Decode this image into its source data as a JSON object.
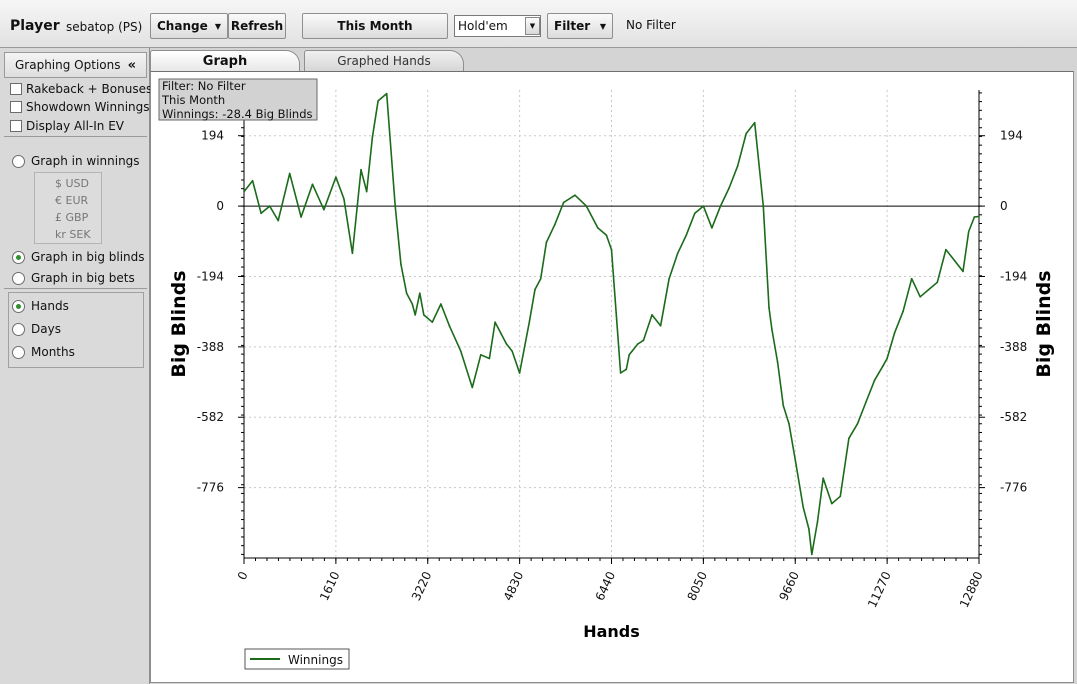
{
  "toolbar": {
    "player_label": "Player",
    "player_name": "sebatop (PS)",
    "change_label": "Change",
    "refresh_label": "Refresh",
    "period_label": "This Month",
    "game_select": "Hold'em",
    "filter_label": "Filter",
    "filter_status": "No Filter"
  },
  "sidebar": {
    "header": "Graphing Options",
    "collapse_glyph": "«",
    "checkboxes": [
      {
        "label": "Rakeback + Bonuses",
        "checked": false
      },
      {
        "label": "Showdown Winnings",
        "checked": false
      },
      {
        "label": "Display All-In EV",
        "checked": false
      }
    ],
    "graph_modes": [
      {
        "label": "Graph in winnings",
        "checked": false
      },
      {
        "label": "Graph in big blinds",
        "checked": true
      },
      {
        "label": "Graph in big bets",
        "checked": false
      }
    ],
    "currencies": [
      "$ USD",
      "€ EUR",
      "£ GBP",
      "kr SEK"
    ],
    "x_modes": [
      {
        "label": "Hands",
        "checked": true
      },
      {
        "label": "Days",
        "checked": false
      },
      {
        "label": "Months",
        "checked": false
      }
    ]
  },
  "tabs": [
    {
      "label": "Graph",
      "active": true
    },
    {
      "label": "Graphed Hands",
      "active": false
    }
  ],
  "chart_data": {
    "type": "line",
    "info_box": [
      "Filter: No Filter",
      "This Month",
      "Winnings: -28.4 Big Blinds"
    ],
    "xlabel": "Hands",
    "ylabel": "Big Blinds",
    "xlim": [
      0,
      12880
    ],
    "ylim": [
      -970,
      320
    ],
    "x_ticks": [
      0,
      1610,
      3220,
      4830,
      6440,
      8050,
      9660,
      11270,
      12880
    ],
    "y_ticks": [
      194,
      0,
      -194,
      -388,
      -582,
      -776
    ],
    "legend": "Winnings",
    "line_color": "#1b6b1b",
    "series": [
      {
        "name": "Winnings",
        "x": [
          0,
          150,
          300,
          450,
          600,
          800,
          1000,
          1200,
          1400,
          1610,
          1750,
          1900,
          2050,
          2150,
          2250,
          2350,
          2500,
          2650,
          2750,
          2850,
          2950,
          3000,
          3080,
          3150,
          3300,
          3450,
          3600,
          3800,
          4000,
          4150,
          4300,
          4400,
          4500,
          4600,
          4700,
          4830,
          5000,
          5100,
          5200,
          5300,
          5450,
          5600,
          5800,
          6000,
          6200,
          6350,
          6440,
          6600,
          6700,
          6750,
          6800,
          6900,
          7000,
          7150,
          7300,
          7450,
          7600,
          7750,
          7900,
          8050,
          8200,
          8350,
          8500,
          8650,
          8800,
          8950,
          9100,
          9200,
          9250,
          9350,
          9450,
          9550,
          9660,
          9800,
          9900,
          9950,
          10050,
          10150,
          10300,
          10450,
          10600,
          10750,
          10900,
          11050,
          11200,
          11270,
          11400,
          11550,
          11700,
          11850,
          12000,
          12150,
          12300,
          12450,
          12600,
          12700,
          12800,
          12880
        ],
        "y": [
          40,
          70,
          -20,
          0,
          -40,
          90,
          -30,
          60,
          -10,
          80,
          20,
          -130,
          100,
          40,
          190,
          290,
          310,
          0,
          -160,
          -240,
          -270,
          -300,
          -240,
          -300,
          -320,
          -270,
          -330,
          -400,
          -500,
          -410,
          -420,
          -320,
          -350,
          -380,
          -400,
          -460,
          -320,
          -230,
          -200,
          -100,
          -50,
          10,
          30,
          0,
          -60,
          -80,
          -120,
          -460,
          -450,
          -410,
          -400,
          -380,
          -370,
          -300,
          -330,
          -200,
          -130,
          -80,
          -20,
          0,
          -60,
          0,
          50,
          110,
          200,
          230,
          0,
          -280,
          -340,
          -430,
          -550,
          -600,
          -700,
          -830,
          -890,
          -960,
          -870,
          -750,
          -820,
          -800,
          -640,
          -600,
          -540,
          -480,
          -440,
          -420,
          -350,
          -290,
          -200,
          -250,
          -230,
          -210,
          -120,
          -150,
          -180,
          -70,
          -30,
          -28.4
        ]
      }
    ]
  }
}
